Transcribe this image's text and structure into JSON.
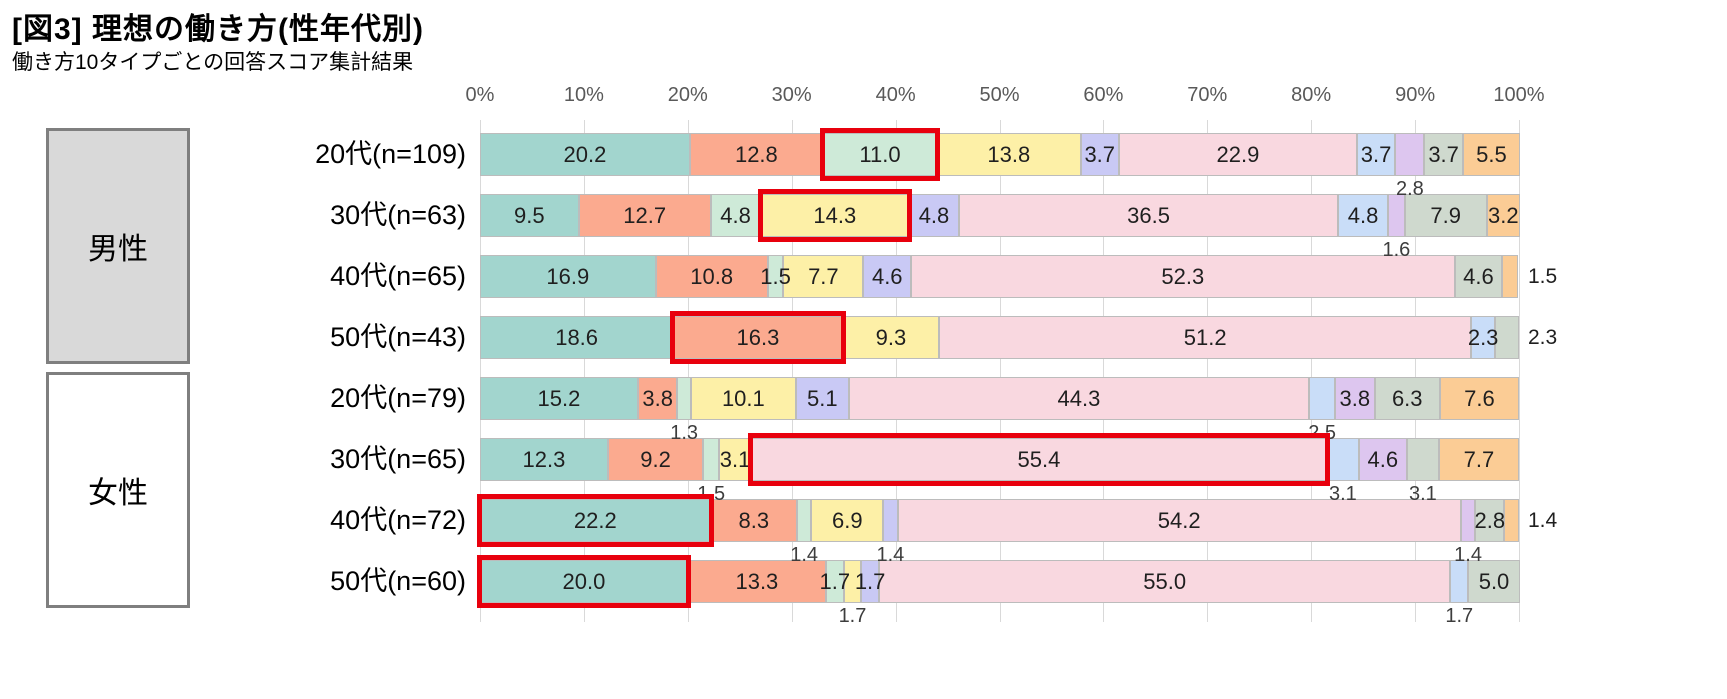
{
  "title": "[図3] 理想の働き方(性年代別)",
  "subtitle": "働き方10タイプごとの回答スコア集計結果",
  "chart_data": {
    "type": "bar",
    "variant": "horizontal-stacked-percent",
    "title": "[図3] 理想の働き方(性年代別)",
    "subtitle": "働き方10タイプごとの回答スコア集計結果",
    "x_range": [
      0,
      100
    ],
    "x_ticks": [
      "0%",
      "10%",
      "20%",
      "30%",
      "40%",
      "50%",
      "60%",
      "70%",
      "80%",
      "90%",
      "100%"
    ],
    "grid": true,
    "legend": "none",
    "segment_colors": [
      "#a2d5ce",
      "#fbaa8f",
      "#ceead8",
      "#fdf0a7",
      "#c9c9f5",
      "#f9d8e0",
      "#c9ddf8",
      "#ddc6ef",
      "#cfd9ce",
      "#fbcc95"
    ],
    "highlight_box_color": "#e8000d",
    "groups": [
      {
        "label": "男性",
        "fill": "#d9d9d9",
        "row_indexes": [
          0,
          1,
          2,
          3
        ]
      },
      {
        "label": "女性",
        "fill": "#ffffff",
        "row_indexes": [
          4,
          5,
          6,
          7
        ]
      }
    ],
    "rows": [
      {
        "label": "20代(n=109)",
        "values": [
          20.2,
          12.8,
          11.0,
          13.8,
          3.7,
          22.9,
          3.7,
          2.8,
          3.7,
          5.5
        ],
        "label_modes": [
          "on",
          "on",
          "on",
          "on",
          "on",
          "on",
          "on",
          "below",
          "on",
          "on"
        ],
        "highlight_index": 2
      },
      {
        "label": "30代(n=63)",
        "values": [
          9.5,
          12.7,
          4.8,
          14.3,
          4.8,
          36.5,
          4.8,
          1.6,
          7.9,
          3.2
        ],
        "label_modes": [
          "on",
          "on",
          "on",
          "on",
          "on",
          "on",
          "on",
          "below",
          "on",
          "on"
        ],
        "highlight_index": 3
      },
      {
        "label": "40代(n=65)",
        "values": [
          16.9,
          10.8,
          1.5,
          7.7,
          4.6,
          52.3,
          0,
          0,
          4.6,
          1.5
        ],
        "label_modes": [
          "on",
          "on",
          "on",
          "on",
          "on",
          "on",
          "none",
          "none",
          "on",
          "right"
        ],
        "highlight_index": null
      },
      {
        "label": "50代(n=43)",
        "values": [
          18.6,
          16.3,
          0,
          9.3,
          0,
          51.2,
          2.3,
          0,
          2.3,
          0
        ],
        "label_modes": [
          "on",
          "on",
          "none",
          "on",
          "none",
          "on",
          "on",
          "none",
          "right",
          "none"
        ],
        "highlight_index": 1
      },
      {
        "label": "20代(n=79)",
        "values": [
          15.2,
          3.8,
          1.3,
          10.1,
          5.1,
          44.3,
          2.5,
          3.8,
          6.3,
          7.6
        ],
        "label_modes": [
          "on",
          "on",
          "below",
          "on",
          "on",
          "on",
          "below",
          "on",
          "on",
          "on"
        ],
        "highlight_index": null
      },
      {
        "label": "30代(n=65)",
        "values": [
          12.3,
          9.2,
          1.5,
          3.1,
          0,
          55.4,
          3.1,
          4.6,
          3.1,
          7.7
        ],
        "label_modes": [
          "on",
          "on",
          "below",
          "on",
          "none",
          "on",
          "below",
          "on",
          "below",
          "on"
        ],
        "highlight_index": 5
      },
      {
        "label": "40代(n=72)",
        "values": [
          22.2,
          8.3,
          1.4,
          6.9,
          1.4,
          54.2,
          0,
          1.4,
          2.8,
          1.4
        ],
        "label_modes": [
          "on",
          "on",
          "below",
          "on",
          "below",
          "on",
          "none",
          "below",
          "on",
          "right"
        ],
        "highlight_index": 0
      },
      {
        "label": "50代(n=60)",
        "values": [
          20.0,
          13.3,
          1.7,
          1.7,
          1.7,
          55.0,
          1.7,
          0,
          5.0,
          0
        ],
        "label_modes": [
          "on",
          "on",
          "on",
          "below",
          "on",
          "on",
          "below",
          "none",
          "on",
          "none"
        ],
        "highlight_index": 0
      }
    ]
  }
}
